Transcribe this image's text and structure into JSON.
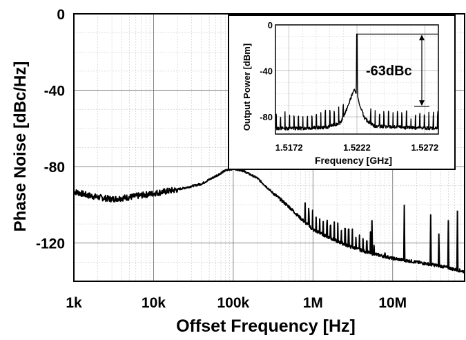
{
  "chart_data": [
    {
      "type": "line",
      "xlabel": "Offset Frequency [Hz]",
      "ylabel": "Phase Noise [dBc/Hz]",
      "xscale": "log",
      "xlim": [
        1000,
        80000000
      ],
      "ylim": [
        -140,
        0
      ],
      "xticks": [
        1000,
        10000,
        100000,
        1000000,
        10000000
      ],
      "xtick_labels": [
        "1k",
        "10k",
        "100k",
        "1M",
        "10M"
      ],
      "yticks": [
        0,
        -40,
        -80,
        -120
      ],
      "ytick_labels": [
        "0",
        "-40",
        "-80",
        "-120"
      ],
      "grid": true,
      "series": [
        {
          "color": "#000000",
          "points": [
            [
              1000,
              -93
            ],
            [
              1500,
              -95
            ],
            [
              2000,
              -96
            ],
            [
              3000,
              -97
            ],
            [
              5000,
              -96
            ],
            [
              10000,
              -94
            ],
            [
              20000,
              -92
            ],
            [
              40000,
              -89
            ],
            [
              60000,
              -85
            ],
            [
              80000,
              -82
            ],
            [
              100000,
              -81
            ],
            [
              130000,
              -82
            ],
            [
              200000,
              -86
            ],
            [
              300000,
              -93
            ],
            [
              500000,
              -101
            ],
            [
              700000,
              -107
            ],
            [
              1000000,
              -113
            ],
            [
              2000000,
              -119
            ],
            [
              3000000,
              -122
            ],
            [
              5000000,
              -125
            ],
            [
              10000000,
              -128
            ],
            [
              20000000,
              -130
            ],
            [
              40000000,
              -132
            ],
            [
              80000000,
              -135
            ]
          ],
          "spurs": [
            [
              5500000,
              -108
            ],
            [
              8000000,
              -125
            ],
            [
              14000000,
              -100
            ],
            [
              30000000,
              -105
            ],
            [
              38000000,
              -115
            ],
            [
              50000000,
              -108
            ],
            [
              65000000,
              -103
            ]
          ]
        }
      ]
    },
    {
      "type": "line",
      "role": "inset",
      "xlabel": "Frequency [GHz]",
      "ylabel": "Output Power [dBm]",
      "xlim": [
        1.5162,
        1.5282
      ],
      "ylim": [
        -95,
        0
      ],
      "xticks": [
        1.5172,
        1.5222,
        1.5272
      ],
      "xtick_labels": [
        "1.5172",
        "1.5222",
        "1.5272"
      ],
      "yticks": [
        0,
        -40,
        -80
      ],
      "ytick_labels": [
        "0",
        "-40",
        "-80"
      ],
      "grid": true,
      "annotation": "-63dBc",
      "annotation_levels": [
        -8,
        -71
      ],
      "series": [
        {
          "color": "#000000",
          "peak": [
            1.5222,
            -8
          ],
          "points": [
            [
              1.5162,
              -90
            ],
            [
              1.518,
              -90
            ],
            [
              1.52,
              -89
            ],
            [
              1.521,
              -85
            ],
            [
              1.5215,
              -72
            ],
            [
              1.5218,
              -62
            ],
            [
              1.522,
              -56
            ],
            [
              1.52215,
              -60
            ],
            [
              1.5222,
              -8
            ],
            [
              1.52225,
              -62
            ],
            [
              1.5224,
              -70
            ],
            [
              1.5228,
              -82
            ],
            [
              1.5235,
              -88
            ],
            [
              1.525,
              -89
            ],
            [
              1.5282,
              -90
            ]
          ]
        }
      ]
    }
  ]
}
